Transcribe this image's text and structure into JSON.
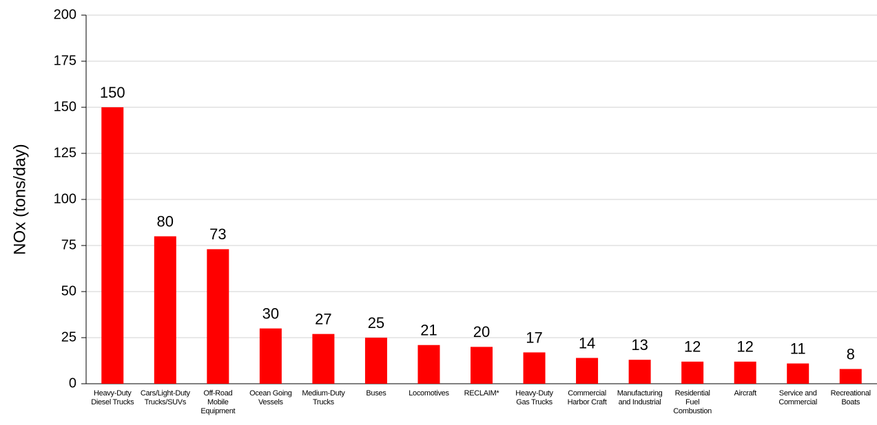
{
  "chart_data": {
    "type": "bar",
    "y_label": "NOx (tons/day)",
    "categories": [
      "Heavy-Duty Diesel Trucks",
      "Cars/Light-Duty Trucks/SUVs",
      "Off-Road Mobile Equipment",
      "Ocean Going Vessels",
      "Medium-Duty Trucks",
      "Buses",
      "Locomotives",
      "RECLAIM*",
      "Heavy-Duty Gas Trucks",
      "Commercial Harbor Craft",
      "Manufacturing and Industrial",
      "Residential Fuel Combustion",
      "Aircraft",
      "Service and Commercial",
      "Recreational Boats"
    ],
    "values": [
      150,
      80,
      73,
      30,
      27,
      25,
      21,
      20,
      17,
      14,
      13,
      12,
      12,
      11,
      8
    ],
    "color": "#ff0000",
    "ylim": [
      0,
      200
    ],
    "yticks": [
      0,
      25,
      50,
      75,
      100,
      125,
      150,
      175,
      200
    ],
    "grid": true
  }
}
